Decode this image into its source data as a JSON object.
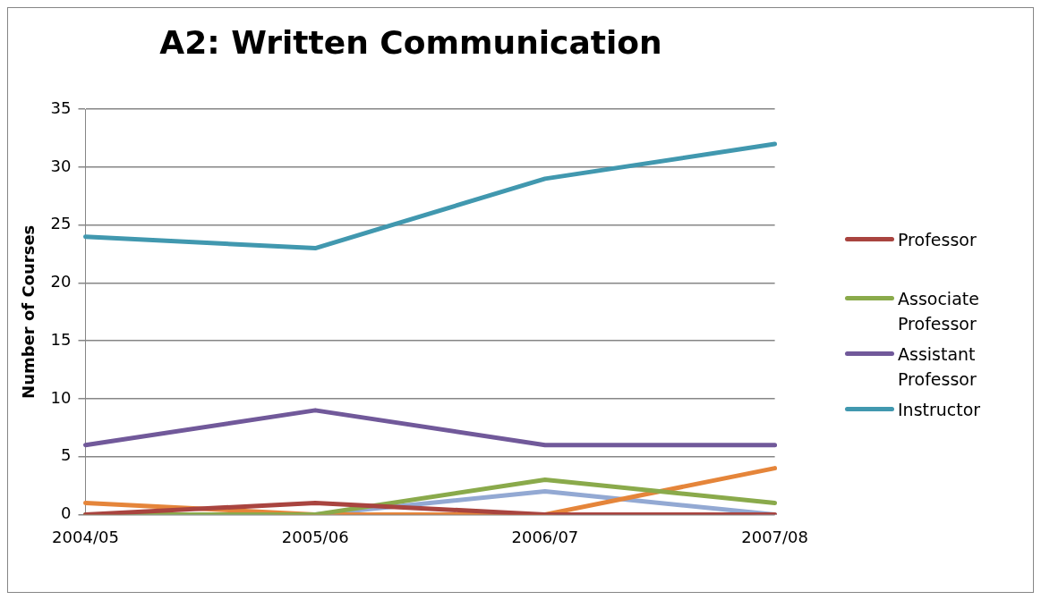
{
  "chart_data": {
    "type": "line",
    "title": "A2: Written Communication",
    "ylabel": "Number of Courses",
    "categories": [
      "2004/05",
      "2005/06",
      "2006/07",
      "2007/08"
    ],
    "series": [
      {
        "name": "Professor",
        "color": "#a9443f",
        "values": [
          0,
          1,
          0,
          0
        ]
      },
      {
        "name": "Associate Professor",
        "color": "#8aaa4b",
        "values": [
          0,
          0,
          3,
          1
        ]
      },
      {
        "name": "Assistant Professor",
        "color": "#71599a",
        "values": [
          6,
          9,
          6,
          6
        ]
      },
      {
        "name": "Instructor",
        "color": "#4198af",
        "values": [
          24,
          23,
          29,
          32
        ]
      },
      {
        "color": "#e5853a",
        "values": [
          1,
          0,
          0,
          4
        ]
      },
      {
        "color": "#93a9d3",
        "values": [
          0,
          0,
          2,
          0
        ]
      }
    ],
    "ylim": [
      0,
      35
    ],
    "yticks": [
      0,
      5,
      10,
      15,
      20,
      25,
      30,
      35
    ],
    "grid": "y",
    "legend": "right",
    "marker": "none",
    "line_style": "solid"
  }
}
